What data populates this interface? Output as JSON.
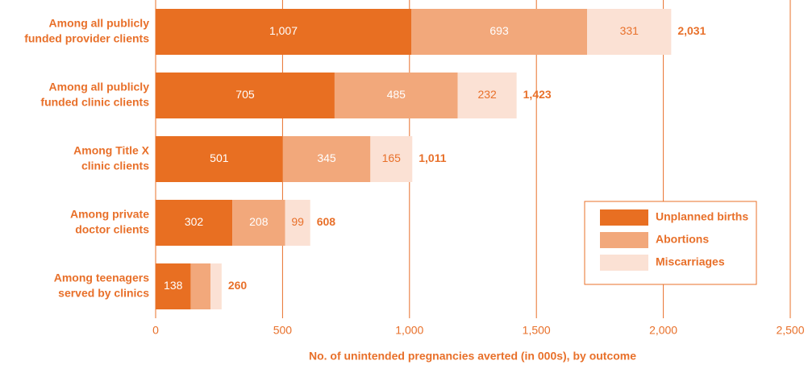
{
  "chart_data": {
    "type": "stacked_bar_horizontal",
    "x_label": "No. of unintended pregnancies averted (in 000s), by outcome",
    "categories": [
      [
        "Among all publicly",
        "funded provider clients"
      ],
      [
        "Among all publicly",
        "funded clinic clients"
      ],
      [
        "Among Title X",
        "clinic clients"
      ],
      [
        "Among private",
        "doctor clients"
      ],
      [
        "Among teenagers",
        "served by clinics"
      ]
    ],
    "series": [
      {
        "name": "Unplanned births",
        "color": "#e86f22",
        "values": [
          1007,
          705,
          501,
          302,
          138
        ],
        "value_labels": [
          "1,007",
          "705",
          "501",
          "302",
          "138"
        ]
      },
      {
        "name": "Abortions",
        "color": "#f2a87b",
        "values": [
          693,
          485,
          345,
          208,
          78
        ],
        "value_labels": [
          "693",
          "485",
          "345",
          "208",
          null
        ]
      },
      {
        "name": "Miscarriages",
        "color": "#fbe1d4",
        "values": [
          331,
          232,
          165,
          99,
          44
        ],
        "value_labels": [
          "331",
          "232",
          "165",
          "99",
          null
        ]
      }
    ],
    "totals": [
      2031,
      1423,
      1011,
      608,
      260
    ],
    "total_labels": [
      "2,031",
      "1,423",
      "1,011",
      "608",
      "260"
    ],
    "xlim": [
      0,
      2500
    ],
    "xticks": [
      0,
      500,
      {
        "value": 1000,
        "label": "1,000"
      },
      {
        "value": 1500,
        "label": "1,500"
      },
      {
        "value": 2000,
        "label": "2,000"
      },
      {
        "value": 2500,
        "label": "2,500"
      }
    ],
    "grid": true,
    "legend": "lower right"
  }
}
